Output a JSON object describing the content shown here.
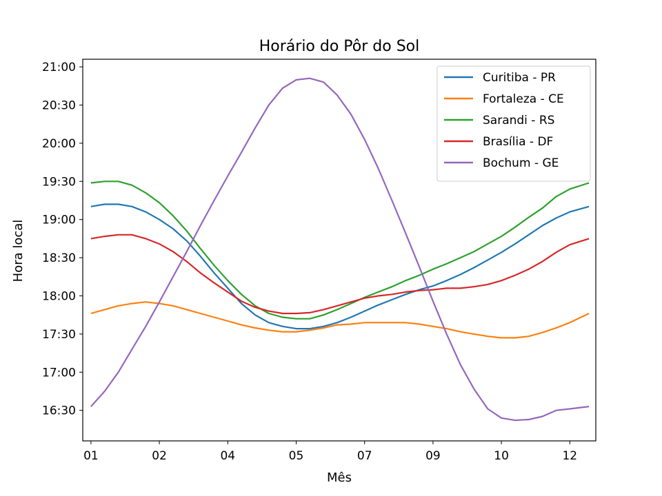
{
  "chart_data": {
    "type": "line",
    "title": "Horário do Pôr do Sol",
    "xlabel": "Mês",
    "ylabel": "Hora local",
    "xlim": [
      -6,
      369
    ],
    "ylim": [
      16.1,
      21.1
    ],
    "x_unit": "day of year",
    "x_ticks": [
      {
        "day": 0,
        "label": "01"
      },
      {
        "day": 50,
        "label": "02"
      },
      {
        "day": 100,
        "label": "04"
      },
      {
        "day": 150,
        "label": "05"
      },
      {
        "day": 200,
        "label": "07"
      },
      {
        "day": 250,
        "label": "09"
      },
      {
        "day": 300,
        "label": "10"
      },
      {
        "day": 350,
        "label": "12"
      }
    ],
    "y_ticks": [
      {
        "value": 16.5,
        "label": "16:30"
      },
      {
        "value": 17.0,
        "label": "17:00"
      },
      {
        "value": 17.5,
        "label": "17:30"
      },
      {
        "value": 18.0,
        "label": "18:00"
      },
      {
        "value": 18.5,
        "label": "18:30"
      },
      {
        "value": 19.0,
        "label": "19:00"
      },
      {
        "value": 19.5,
        "label": "19:30"
      },
      {
        "value": 20.0,
        "label": "20:00"
      },
      {
        "value": 20.5,
        "label": "20:30"
      },
      {
        "value": 21.0,
        "label": "21:00"
      }
    ],
    "grid": false,
    "legend_position": "top-right",
    "series": [
      {
        "name": "Curitiba - PR",
        "color": "#1f77b4",
        "x": [
          0,
          10,
          20,
          30,
          40,
          50,
          60,
          70,
          80,
          90,
          100,
          110,
          120,
          130,
          140,
          150,
          160,
          170,
          180,
          190,
          200,
          210,
          220,
          230,
          240,
          250,
          260,
          270,
          280,
          290,
          300,
          310,
          320,
          330,
          340,
          350,
          364
        ],
        "y": [
          19.17,
          19.2,
          19.2,
          19.17,
          19.1,
          19.0,
          18.88,
          18.72,
          18.52,
          18.3,
          18.1,
          17.9,
          17.75,
          17.65,
          17.6,
          17.57,
          17.57,
          17.6,
          17.65,
          17.72,
          17.8,
          17.88,
          17.95,
          18.02,
          18.08,
          18.13,
          18.2,
          18.28,
          18.37,
          18.47,
          18.57,
          18.68,
          18.8,
          18.92,
          19.02,
          19.1,
          19.17
        ]
      },
      {
        "name": "Fortaleza - CE",
        "color": "#ff7f0e",
        "x": [
          0,
          10,
          20,
          30,
          40,
          50,
          60,
          70,
          80,
          90,
          100,
          110,
          120,
          130,
          140,
          150,
          160,
          170,
          180,
          190,
          200,
          210,
          220,
          230,
          240,
          250,
          260,
          270,
          280,
          290,
          300,
          310,
          320,
          330,
          340,
          350,
          364
        ],
        "y": [
          17.77,
          17.82,
          17.87,
          17.9,
          17.92,
          17.9,
          17.87,
          17.82,
          17.77,
          17.72,
          17.67,
          17.62,
          17.58,
          17.55,
          17.53,
          17.53,
          17.55,
          17.58,
          17.62,
          17.63,
          17.65,
          17.65,
          17.65,
          17.65,
          17.63,
          17.6,
          17.57,
          17.53,
          17.5,
          17.47,
          17.45,
          17.45,
          17.47,
          17.52,
          17.58,
          17.65,
          17.77
        ]
      },
      {
        "name": "Sarandi - RS",
        "color": "#2ca02c",
        "x": [
          0,
          10,
          20,
          30,
          40,
          50,
          60,
          70,
          80,
          90,
          100,
          110,
          120,
          130,
          140,
          150,
          160,
          170,
          180,
          190,
          200,
          210,
          220,
          230,
          240,
          250,
          260,
          270,
          280,
          290,
          300,
          310,
          320,
          330,
          340,
          350,
          364
        ],
        "y": [
          19.48,
          19.5,
          19.5,
          19.45,
          19.35,
          19.22,
          19.05,
          18.85,
          18.62,
          18.4,
          18.2,
          18.02,
          17.87,
          17.77,
          17.72,
          17.7,
          17.7,
          17.75,
          17.82,
          17.9,
          17.98,
          18.05,
          18.12,
          18.2,
          18.27,
          18.35,
          18.42,
          18.5,
          18.58,
          18.68,
          18.78,
          18.9,
          19.03,
          19.15,
          19.3,
          19.4,
          19.48
        ]
      },
      {
        "name": "Brasília - DF",
        "color": "#d62728",
        "x": [
          0,
          10,
          20,
          30,
          40,
          50,
          60,
          70,
          80,
          90,
          100,
          110,
          120,
          130,
          140,
          150,
          160,
          170,
          180,
          190,
          200,
          210,
          220,
          230,
          240,
          250,
          260,
          270,
          280,
          290,
          300,
          310,
          320,
          330,
          340,
          350,
          364
        ],
        "y": [
          18.75,
          18.78,
          18.8,
          18.8,
          18.75,
          18.68,
          18.58,
          18.45,
          18.3,
          18.17,
          18.05,
          17.93,
          17.85,
          17.8,
          17.77,
          17.77,
          17.78,
          17.82,
          17.87,
          17.92,
          17.97,
          18.0,
          18.02,
          18.05,
          18.07,
          18.08,
          18.1,
          18.1,
          18.12,
          18.15,
          18.2,
          18.27,
          18.35,
          18.45,
          18.57,
          18.67,
          18.75
        ]
      },
      {
        "name": "Bochum - GE",
        "color": "#9467bd",
        "x": [
          0,
          10,
          20,
          30,
          40,
          50,
          60,
          70,
          80,
          90,
          100,
          110,
          120,
          130,
          140,
          150,
          160,
          170,
          180,
          190,
          200,
          210,
          220,
          230,
          240,
          250,
          260,
          270,
          280,
          290,
          300,
          310,
          320,
          330,
          340,
          350,
          364
        ],
        "y": [
          16.55,
          16.75,
          17.0,
          17.3,
          17.6,
          17.92,
          18.25,
          18.58,
          18.92,
          19.25,
          19.57,
          19.88,
          20.2,
          20.5,
          20.72,
          20.83,
          20.85,
          20.8,
          20.63,
          20.38,
          20.05,
          19.67,
          19.25,
          18.82,
          18.38,
          17.93,
          17.5,
          17.1,
          16.78,
          16.52,
          16.4,
          16.37,
          16.38,
          16.42,
          16.5,
          16.52,
          16.55
        ]
      }
    ]
  }
}
